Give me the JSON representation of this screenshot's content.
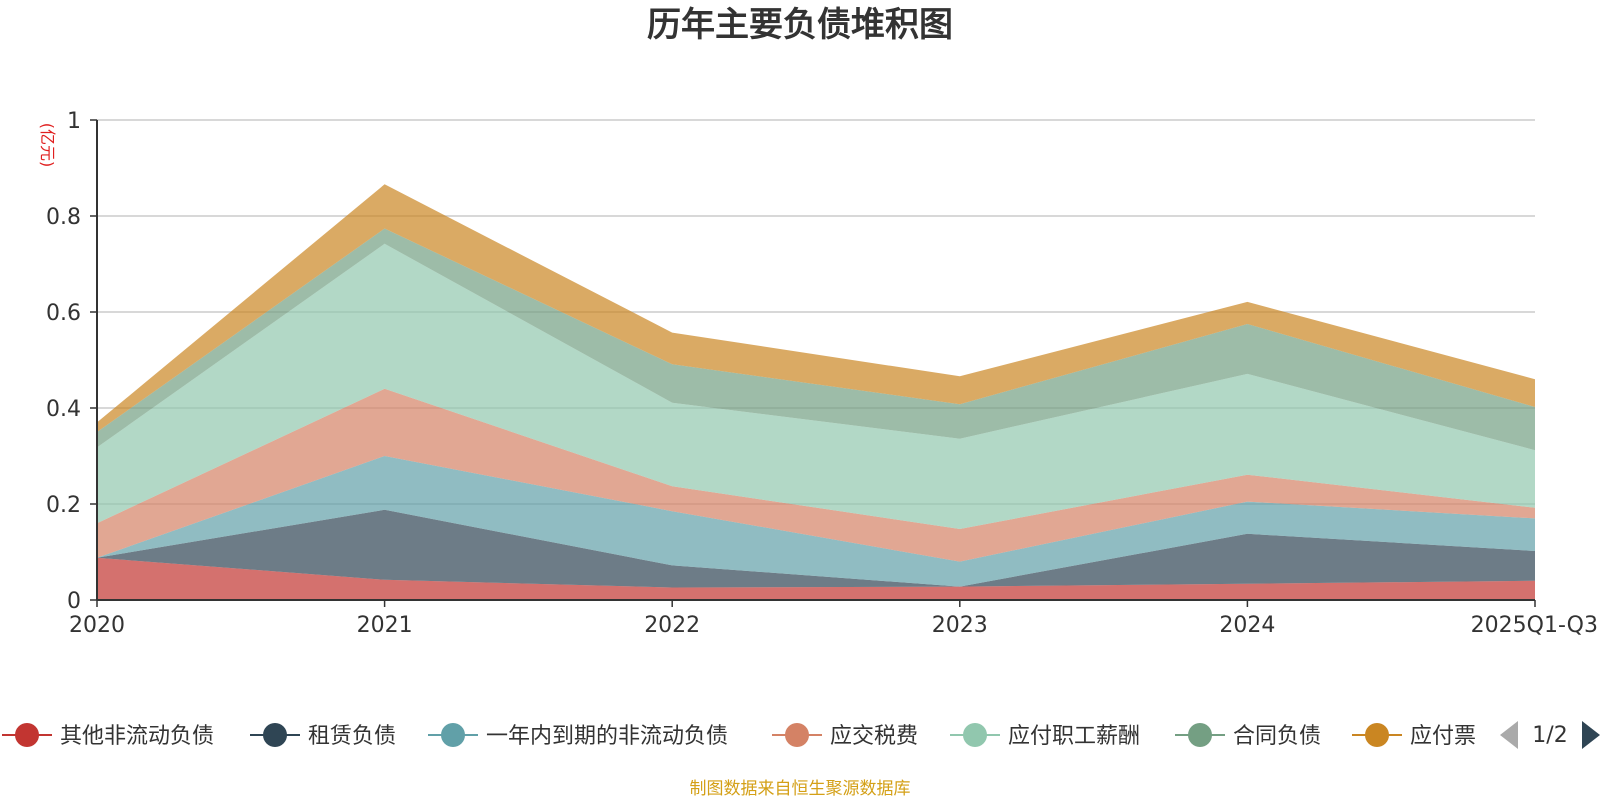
{
  "chart_data": {
    "type": "area",
    "stacked": true,
    "title": "历年主要负债堆积图",
    "unit": "(亿元)",
    "categories": [
      "2020",
      "2021",
      "2022",
      "2023",
      "2024",
      "2025Q1-Q3"
    ],
    "ylim": [
      0,
      1
    ],
    "yticks": [
      "0",
      "0.2",
      "0.4",
      "0.6",
      "0.8",
      "1"
    ],
    "grid": true,
    "series": [
      {
        "name": "其他非流动负债",
        "color": "#c23531",
        "values": [
          0.088,
          0.042,
          0.026,
          0.028,
          0.034,
          0.04
        ]
      },
      {
        "name": "租赁负债",
        "color": "#2f4554",
        "values": [
          0.0,
          0.146,
          0.046,
          0.0,
          0.104,
          0.062
        ]
      },
      {
        "name": "一年内到期的非流动负债",
        "color": "#61a0a8",
        "values": [
          0.0,
          0.112,
          0.113,
          0.052,
          0.067,
          0.068
        ]
      },
      {
        "name": "应交税费",
        "color": "#d48265",
        "values": [
          0.072,
          0.14,
          0.052,
          0.068,
          0.056,
          0.022
        ]
      },
      {
        "name": "应付职工薪酬",
        "color": "#91c7ae",
        "values": [
          0.158,
          0.302,
          0.174,
          0.188,
          0.21,
          0.12
        ]
      },
      {
        "name": "合同负债",
        "color": "#749f83",
        "values": [
          0.032,
          0.032,
          0.08,
          0.072,
          0.104,
          0.09
        ]
      },
      {
        "name": "应付票",
        "color": "#ca8622",
        "values": [
          0.02,
          0.092,
          0.066,
          0.058,
          0.046,
          0.058
        ]
      }
    ],
    "legend": {
      "position": "bottom",
      "page": "1/2"
    },
    "source": "制图数据来自恒生聚源数据库"
  }
}
